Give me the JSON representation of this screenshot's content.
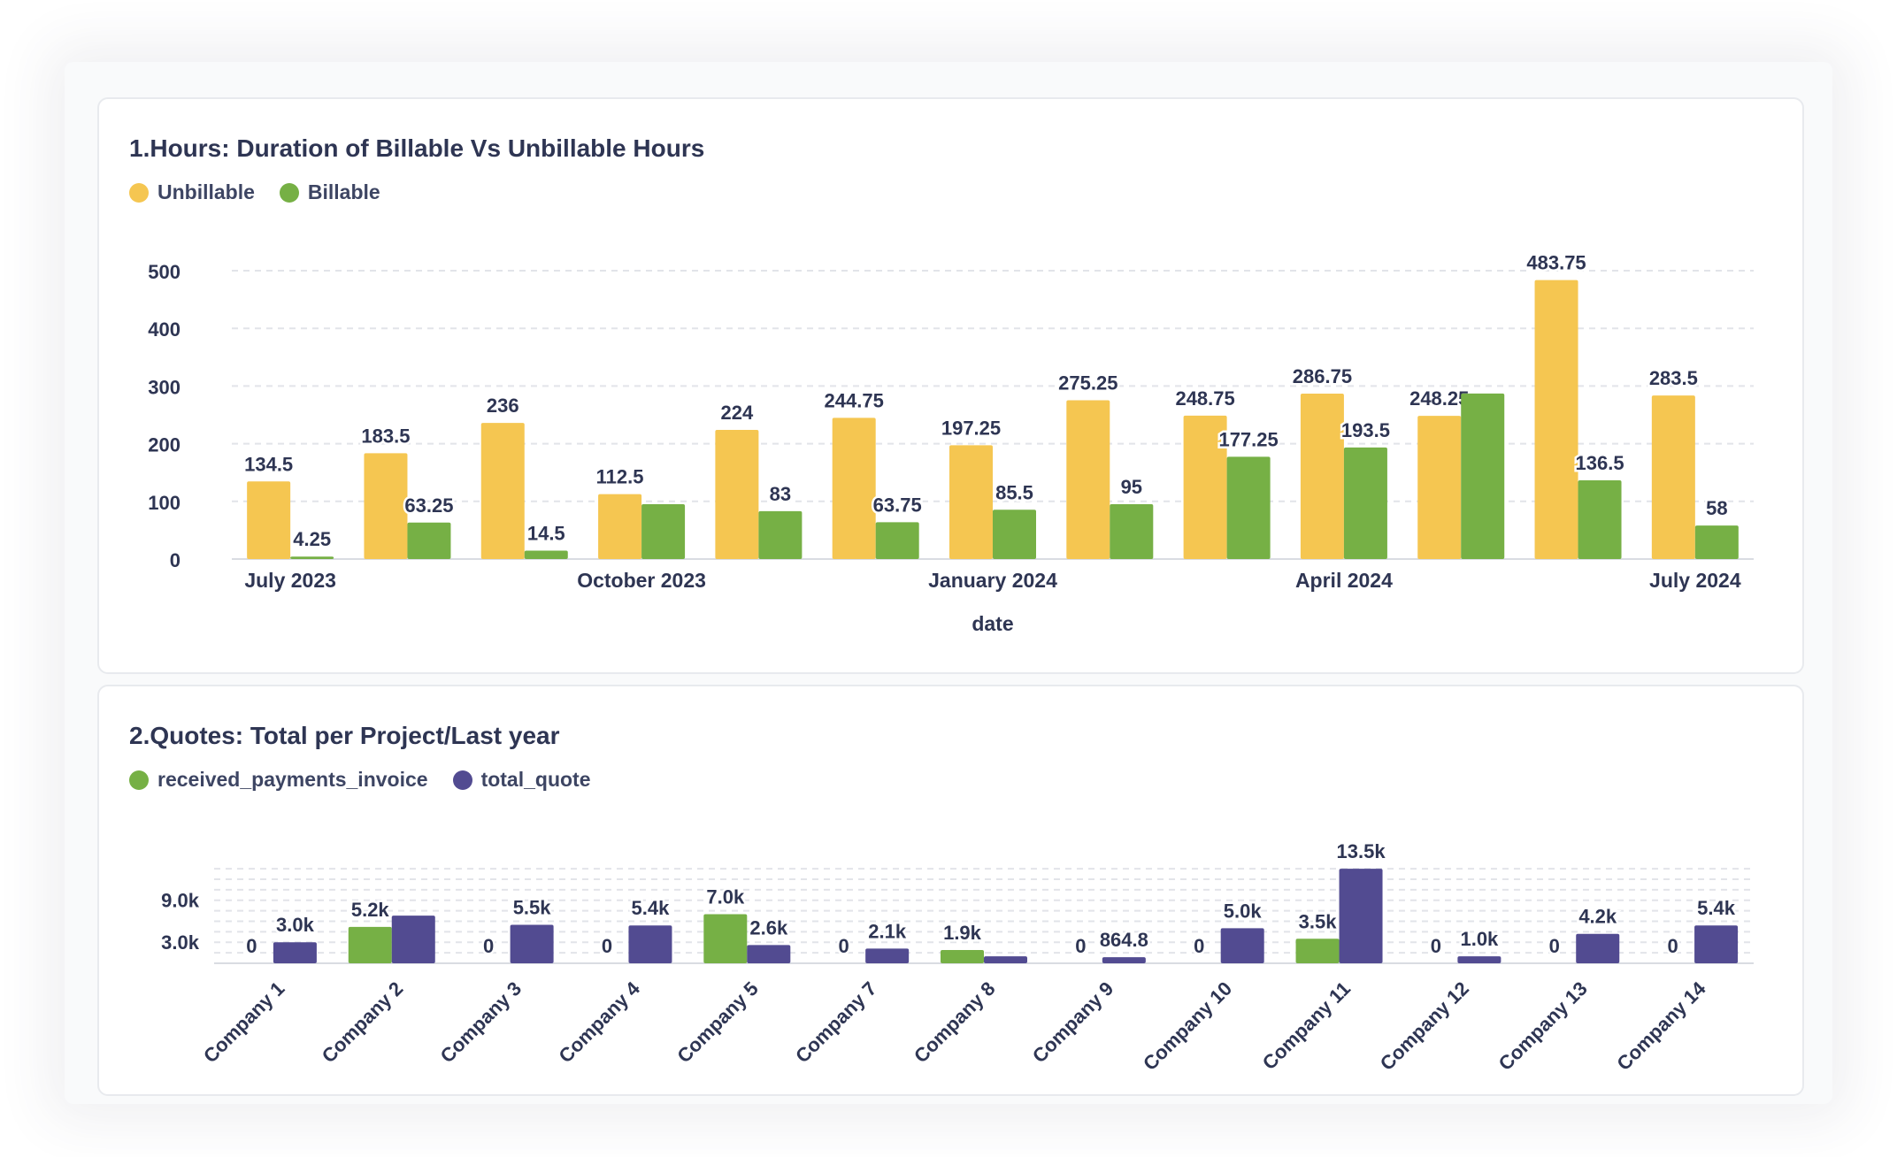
{
  "colors": {
    "unbillable": "#f5c651",
    "billable": "#76b045",
    "received": "#76b045",
    "quote": "#524b91",
    "text": "#2e3553",
    "grid": "#e2e4e9"
  },
  "chart_data": [
    {
      "type": "bar",
      "title": "1.Hours: Duration of Billable Vs Unbillable Hours",
      "xlabel": "date",
      "ylabel": "",
      "ylim": [
        0,
        500
      ],
      "yticks": [
        "0",
        "100",
        "200",
        "300",
        "400",
        "500"
      ],
      "grid": true,
      "legend_position": "top-left",
      "xtick_labels": [
        "July 2023",
        "October 2023",
        "January 2024",
        "April 2024",
        "July 2024"
      ],
      "categories": [
        "2023-07",
        "2023-08",
        "2023-09",
        "2023-10",
        "2023-11",
        "2023-12",
        "2024-01",
        "2024-02",
        "2024-03",
        "2024-04",
        "2024-05",
        "2024-06",
        "2024-07"
      ],
      "series": [
        {
          "name": "Unbillable",
          "values": [
            134.5,
            183.5,
            236,
            112.5,
            224,
            244.75,
            197.25,
            275.25,
            248.75,
            286.75,
            248.25,
            483.75,
            283.5
          ],
          "labels": [
            "134.5",
            "183.5",
            "236",
            "112.5",
            "224",
            "244.75",
            "197.25",
            "275.25",
            "248.75",
            "286.75",
            "248.25",
            "483.75",
            "283.5"
          ]
        },
        {
          "name": "Billable",
          "values": [
            4.25,
            63.25,
            14.5,
            95,
            83,
            63.75,
            85.5,
            95,
            177.25,
            193.5,
            287,
            136.5,
            58
          ],
          "labels": [
            "4.25",
            "63.25",
            "14.5",
            "",
            "83",
            "63.75",
            "85.5",
            "95",
            "177.25",
            "193.5",
            "",
            "136.5",
            "58"
          ]
        }
      ]
    },
    {
      "type": "bar",
      "title": "2.Quotes: Total per Project/Last year",
      "xlabel": "",
      "ylabel": "",
      "grid": true,
      "legend_position": "top-left",
      "yticks": [
        "3.0k",
        "9.0k"
      ],
      "categories": [
        "Company 1",
        "Company 2",
        "Company 3",
        "Company 4",
        "Company 5",
        "Company 7",
        "Company 8",
        "Company 9",
        "Company 10",
        "Company 11",
        "Company 12",
        "Company 13",
        "Company 14"
      ],
      "series": [
        {
          "name": "received_payments_invoice",
          "values": [
            0,
            5200,
            0,
            0,
            7000,
            0,
            1900,
            0,
            0,
            3500,
            0,
            0,
            0
          ],
          "labels": [
            "0",
            "5.2k",
            "0",
            "0",
            "7.0k",
            "0",
            "1.9k",
            "0",
            "0",
            "3.5k",
            "0",
            "0",
            "0"
          ]
        },
        {
          "name": "total_quote",
          "values": [
            3000,
            6800,
            5500,
            5400,
            2600,
            2100,
            1000,
            864.8,
            5000,
            13500,
            1000,
            4200,
            5400
          ],
          "labels": [
            "3.0k",
            "",
            "5.5k",
            "5.4k",
            "2.6k",
            "2.1k",
            "",
            "864.8",
            "5.0k",
            "13.5k",
            "1.0k",
            "4.2k",
            "5.4k"
          ]
        }
      ]
    }
  ]
}
